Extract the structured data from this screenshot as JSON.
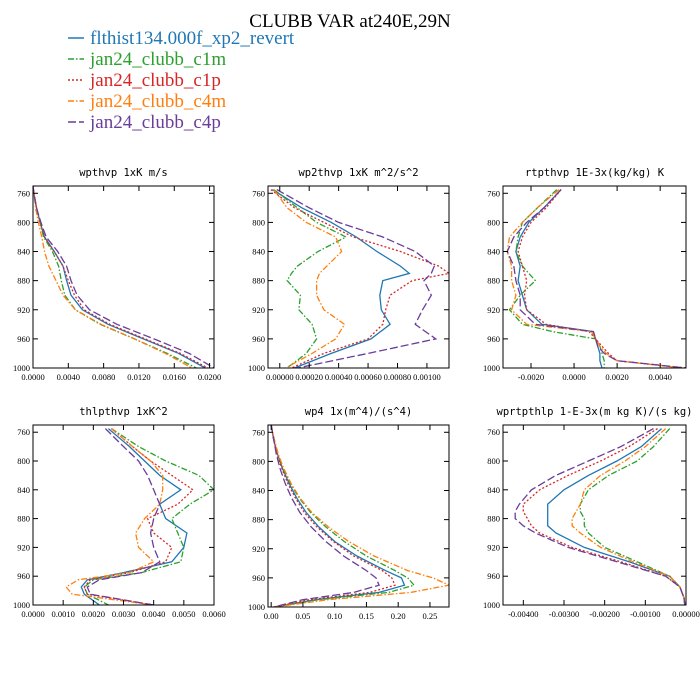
{
  "title": "CLUBB VAR at240E,29N",
  "legend": [
    {
      "name": "flthist134.000f_xp2_revert",
      "color": "#1f77b4",
      "dash": ""
    },
    {
      "name": "jan24_clubb_c1m",
      "color": "#2ca02c",
      "dash": "6,2,1.5,2"
    },
    {
      "name": "jan24_clubb_c1p",
      "color": "#d62728",
      "dash": "2,2"
    },
    {
      "name": "jan24_clubb_c4m",
      "color": "#ff7f0e",
      "dash": "6,2,1.5,2"
    },
    {
      "name": "jan24_clubb_c4p",
      "color": "#6a3d9a",
      "dash": "8,3"
    }
  ],
  "chart_data": [
    {
      "type": "line",
      "title": "wpthvp  1xK m/s",
      "ylim": [
        1000,
        750
      ],
      "yticks": [
        "760",
        "800",
        "840",
        "880",
        "920",
        "960",
        "1000"
      ],
      "yticks_v": [
        760,
        800,
        840,
        880,
        920,
        960,
        1000
      ],
      "xlim": [
        0,
        0.0205
      ],
      "xticks": [
        "0.0000",
        "0.0040",
        "0.0080",
        "0.0120",
        "0.0160",
        "0.0200"
      ],
      "xticks_v": [
        0,
        0.004,
        0.008,
        0.012,
        0.016,
        0.02
      ],
      "y": [
        750,
        760,
        780,
        800,
        820,
        840,
        860,
        880,
        900,
        920,
        940,
        960,
        980,
        1000
      ],
      "series": [
        {
          "values": [
            0,
            0.0001,
            0.0004,
            0.0008,
            0.0013,
            0.0024,
            0.0034,
            0.0038,
            0.0043,
            0.0056,
            0.0085,
            0.0125,
            0.0165,
            0.0195
          ]
        },
        {
          "values": [
            0,
            0.0001,
            0.0004,
            0.0008,
            0.0012,
            0.0022,
            0.0029,
            0.0032,
            0.0036,
            0.0048,
            0.0076,
            0.0115,
            0.0152,
            0.0185
          ]
        },
        {
          "values": [
            0,
            0.0001,
            0.0004,
            0.0008,
            0.0013,
            0.0024,
            0.0034,
            0.004,
            0.0047,
            0.0058,
            0.0087,
            0.0127,
            0.0167,
            0.0198
          ]
        },
        {
          "values": [
            0,
            0.0001,
            0.0003,
            0.0006,
            0.001,
            0.0013,
            0.0018,
            0.0026,
            0.0034,
            0.0048,
            0.0077,
            0.0115,
            0.015,
            0.018
          ]
        },
        {
          "values": [
            0,
            0.0001,
            0.0004,
            0.0009,
            0.0015,
            0.0028,
            0.0038,
            0.0043,
            0.005,
            0.0064,
            0.0095,
            0.0137,
            0.0177,
            0.0205
          ]
        }
      ]
    },
    {
      "type": "line",
      "title": "wp2thvp  1xK m^2/s^2",
      "ylim": [
        1000,
        750
      ],
      "yticks": [
        "760",
        "800",
        "840",
        "880",
        "920",
        "960",
        "1000"
      ],
      "yticks_v": [
        760,
        800,
        840,
        880,
        920,
        960,
        1000
      ],
      "xlim": [
        -8e-05,
        0.00115
      ],
      "xticks": [
        "0.00000",
        "0.00020",
        "0.00040",
        "0.00060",
        "0.00080",
        "0.00100"
      ],
      "xticks_v": [
        0,
        0.0002,
        0.0004,
        0.0006,
        0.0008,
        0.001
      ],
      "y": [
        755,
        780,
        800,
        820,
        840,
        860,
        870,
        880,
        900,
        920,
        940,
        960,
        980,
        1000
      ],
      "series": [
        {
          "values": [
            -5e-05,
            0.00015,
            0.00035,
            0.00052,
            0.00066,
            0.00082,
            0.00088,
            0.0007,
            0.00068,
            0.00069,
            0.00075,
            0.00062,
            0.00035,
            0.0001
          ]
        },
        {
          "values": [
            -4e-05,
            0.00012,
            0.00025,
            0.00045,
            0.00026,
            0.00012,
            8e-05,
            5e-05,
            0.00014,
            0.00013,
            0.00022,
            0.00025,
            0.00018,
            5e-05
          ]
        },
        {
          "values": [
            -6e-05,
            0.0001,
            0.0003,
            0.0005,
            0.00082,
            0.00108,
            0.00115,
            0.0009,
            0.00075,
            0.00072,
            0.0007,
            0.0006,
            0.0003,
            8e-05
          ]
        },
        {
          "values": [
            -4e-05,
            5e-05,
            0.00018,
            0.00038,
            0.00042,
            0.00032,
            0.00027,
            0.00025,
            0.00025,
            0.0003,
            0.00044,
            0.00038,
            0.00022,
            4e-05
          ]
        },
        {
          "values": [
            -2e-05,
            0.0002,
            0.0004,
            0.0007,
            0.00092,
            0.00105,
            0.00103,
            0.00098,
            0.00103,
            0.00097,
            0.00092,
            0.00106,
            0.0006,
            0.00012
          ]
        }
      ]
    },
    {
      "type": "line",
      "title": "rtpthvp  1E-3x(kg/kg) K",
      "ylim": [
        1000,
        750
      ],
      "yticks": [
        "760",
        "800",
        "840",
        "880",
        "920",
        "960",
        "1000"
      ],
      "yticks_v": [
        760,
        800,
        840,
        880,
        920,
        960,
        1000
      ],
      "xlim": [
        -0.0033,
        0.0052
      ],
      "xticks": [
        "-0.0020",
        "0.0000",
        "0.0020",
        "0.0040"
      ],
      "xticks_v": [
        -0.002,
        0,
        0.002,
        0.004
      ],
      "y": [
        755,
        780,
        800,
        820,
        840,
        860,
        880,
        900,
        920,
        940,
        950,
        960,
        970,
        980,
        990,
        1000
      ],
      "series": [
        {
          "values": [
            -0.0006,
            -0.0014,
            -0.0021,
            -0.0025,
            -0.0027,
            -0.0025,
            -0.0026,
            -0.0024,
            -0.0022,
            -0.0015,
            0.0009,
            0.001,
            0.0011,
            0.0012,
            0.0012,
            0.0013
          ]
        },
        {
          "values": [
            -0.0008,
            -0.0017,
            -0.0024,
            -0.0026,
            -0.0027,
            -0.0024,
            -0.0018,
            -0.0025,
            -0.003,
            -0.0024,
            -0.001,
            0.001,
            0.0012,
            0.0013,
            0.0014,
            0.0014
          ]
        },
        {
          "values": [
            -0.0006,
            -0.0013,
            -0.002,
            -0.0024,
            -0.0026,
            -0.0024,
            -0.0022,
            -0.0023,
            -0.0022,
            -0.0013,
            0.0007,
            0.001,
            0.0013,
            0.0016,
            0.002,
            0.0052
          ]
        },
        {
          "values": [
            -0.0007,
            -0.0017,
            -0.0024,
            -0.003,
            -0.0031,
            -0.0029,
            -0.0029,
            -0.0027,
            -0.0029,
            -0.0022,
            0.0008,
            0.001,
            0.0012,
            0.0015,
            0.002,
            0.005
          ]
        },
        {
          "values": [
            -0.0006,
            -0.0014,
            -0.0022,
            -0.0028,
            -0.0031,
            -0.0028,
            -0.0027,
            -0.0025,
            -0.0025,
            -0.0018,
            0.0009,
            0.001,
            0.0011,
            0.0014,
            0.002,
            0.0052
          ]
        }
      ]
    },
    {
      "type": "line",
      "title": "thlpthvp  1xK^2",
      "ylim": [
        1000,
        750
      ],
      "yticks": [
        "760",
        "800",
        "840",
        "880",
        "920",
        "960",
        "1000"
      ],
      "yticks_v": [
        760,
        800,
        840,
        880,
        920,
        960,
        1000
      ],
      "xlim": [
        0,
        0.006
      ],
      "xticks": [
        "0.0000",
        "0.0010",
        "0.0020",
        "0.0030",
        "0.0040",
        "0.0050",
        "0.0060"
      ],
      "xticks_v": [
        0,
        0.001,
        0.002,
        0.003,
        0.004,
        0.005,
        0.006
      ],
      "y": [
        755,
        780,
        800,
        820,
        840,
        860,
        880,
        900,
        920,
        940,
        955,
        965,
        975,
        985,
        1000
      ],
      "series": [
        {
          "values": [
            0.0025,
            0.0032,
            0.0037,
            0.0042,
            0.0049,
            0.0042,
            0.0044,
            0.0051,
            0.005,
            0.0046,
            0.003,
            0.0018,
            0.0016,
            0.0017,
            0.0022
          ]
        },
        {
          "values": [
            0.0026,
            0.0035,
            0.0044,
            0.0055,
            0.006,
            0.0052,
            0.0046,
            0.0048,
            0.005,
            0.0049,
            0.0036,
            0.002,
            0.0017,
            0.0018,
            0.0025
          ]
        },
        {
          "values": [
            0.0026,
            0.0033,
            0.0039,
            0.0046,
            0.0053,
            0.0048,
            0.0038,
            0.004,
            0.0046,
            0.0044,
            0.0032,
            0.0019,
            0.0017,
            0.0018,
            0.004
          ]
        },
        {
          "values": [
            0.0026,
            0.0033,
            0.0039,
            0.0043,
            0.0043,
            0.0042,
            0.0037,
            0.0034,
            0.0035,
            0.004,
            0.0032,
            0.0015,
            0.0011,
            0.0013,
            0.004
          ]
        },
        {
          "values": [
            0.0024,
            0.003,
            0.0035,
            0.0038,
            0.004,
            0.0042,
            0.004,
            0.0039,
            0.004,
            0.0042,
            0.0036,
            0.0022,
            0.0018,
            0.0019,
            0.004
          ]
        }
      ]
    },
    {
      "type": "line",
      "title": "wp4  1x(m^4)/(s^4)",
      "ylim": [
        1000,
        750
      ],
      "yticks": [
        "760",
        "800",
        "840",
        "880",
        "920",
        "960",
        "1000"
      ],
      "yticks_v": [
        760,
        800,
        840,
        880,
        920,
        960,
        1000
      ],
      "xlim": [
        -0.005,
        0.28
      ],
      "xticks": [
        "0.00",
        "0.05",
        "0.10",
        "0.15",
        "0.20",
        "0.25"
      ],
      "xticks_v": [
        0,
        0.05,
        0.1,
        0.15,
        0.2,
        0.25
      ],
      "y": [
        750,
        770,
        790,
        810,
        830,
        850,
        870,
        890,
        910,
        930,
        950,
        960,
        970,
        980,
        990,
        1000
      ],
      "series": [
        {
          "values": [
            0,
            0.004,
            0.01,
            0.018,
            0.028,
            0.04,
            0.055,
            0.075,
            0.1,
            0.135,
            0.18,
            0.205,
            0.21,
            0.17,
            0.07,
            0.005
          ]
        },
        {
          "values": [
            0,
            0.004,
            0.01,
            0.019,
            0.03,
            0.044,
            0.062,
            0.086,
            0.115,
            0.15,
            0.195,
            0.215,
            0.225,
            0.185,
            0.075,
            0.005
          ]
        },
        {
          "values": [
            0,
            0.004,
            0.009,
            0.017,
            0.026,
            0.038,
            0.052,
            0.072,
            0.098,
            0.13,
            0.175,
            0.19,
            0.195,
            0.155,
            0.06,
            0.004
          ]
        },
        {
          "values": [
            0,
            0.005,
            0.011,
            0.02,
            0.031,
            0.045,
            0.064,
            0.09,
            0.122,
            0.162,
            0.215,
            0.255,
            0.28,
            0.22,
            0.09,
            0.006
          ]
        },
        {
          "values": [
            0,
            0.004,
            0.008,
            0.014,
            0.022,
            0.032,
            0.045,
            0.063,
            0.086,
            0.114,
            0.15,
            0.165,
            0.17,
            0.13,
            0.05,
            0.004
          ]
        }
      ]
    },
    {
      "type": "line",
      "title": "wprtpthlp  1-E-3x(m kg K)/(s kg)",
      "ylim": [
        1000,
        750
      ],
      "yticks": [
        "760",
        "800",
        "840",
        "880",
        "920",
        "960",
        "1000"
      ],
      "yticks_v": [
        760,
        800,
        840,
        880,
        920,
        960,
        1000
      ],
      "xlim": [
        -0.0045,
        0
      ],
      "xticks": [
        "-0.00400",
        "-0.00300",
        "-0.00200",
        "-0.00100",
        "0.00000"
      ],
      "xticks_v": [
        -0.004,
        -0.003,
        -0.002,
        -0.001,
        0
      ],
      "y": [
        755,
        780,
        800,
        820,
        840,
        860,
        870,
        880,
        890,
        900,
        920,
        940,
        960,
        975,
        990,
        1000
      ],
      "series": [
        {
          "values": [
            -0.0006,
            -0.0011,
            -0.0017,
            -0.0024,
            -0.003,
            -0.0034,
            -0.0034,
            -0.0034,
            -0.0034,
            -0.0032,
            -0.0025,
            -0.0014,
            -0.0004,
            -0.00015,
            -5e-05,
            -3e-05
          ]
        },
        {
          "values": [
            -0.0004,
            -0.0008,
            -0.0012,
            -0.0019,
            -0.0024,
            -0.0026,
            -0.0026,
            -0.0025,
            -0.0025,
            -0.0024,
            -0.002,
            -0.0012,
            -0.0004,
            -0.00015,
            -5e-05,
            -3e-05
          ]
        },
        {
          "values": [
            -0.0007,
            -0.0014,
            -0.0021,
            -0.0029,
            -0.0036,
            -0.004,
            -0.004,
            -0.0039,
            -0.0038,
            -0.0036,
            -0.0028,
            -0.0016,
            -0.0005,
            -0.00015,
            -5e-05,
            -3e-05
          ]
        },
        {
          "values": [
            -0.0005,
            -0.001,
            -0.0015,
            -0.0021,
            -0.0025,
            -0.0026,
            -0.0027,
            -0.0028,
            -0.0028,
            -0.0026,
            -0.0021,
            -0.0013,
            -0.0004,
            -0.00015,
            -5e-05,
            -3e-05
          ]
        },
        {
          "values": [
            -0.0008,
            -0.0016,
            -0.0024,
            -0.0032,
            -0.0038,
            -0.0041,
            -0.0042,
            -0.0042,
            -0.004,
            -0.0037,
            -0.0029,
            -0.0017,
            -0.0005,
            -0.00015,
            -5e-05,
            -3e-05
          ]
        }
      ]
    }
  ]
}
